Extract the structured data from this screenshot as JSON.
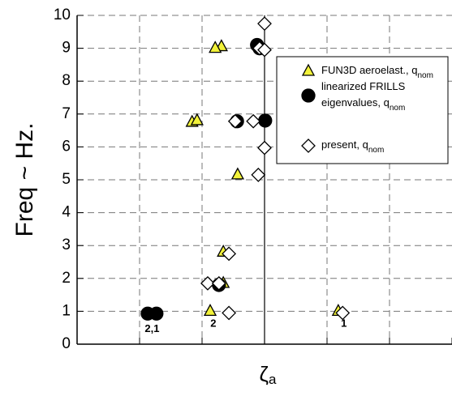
{
  "chart_data": {
    "type": "scatter",
    "y_label": "Freq ~ Hz.",
    "x_label": "ζ",
    "x_label_sub": "a",
    "xlim": [
      -3,
      3
    ],
    "xticks": [
      -3,
      -2,
      -1,
      0,
      1,
      2,
      3
    ],
    "ylim": [
      0,
      10
    ],
    "yticks": [
      0,
      1,
      2,
      3,
      4,
      5,
      6,
      7,
      8,
      9,
      10
    ],
    "grid": true,
    "vline": 0,
    "series": [
      {
        "name": [
          "FUN3D aeroelast., q"
        ],
        "name_sub": "nom",
        "marker": "triangle",
        "color": "#f2f23a",
        "x": [
          -0.69,
          -0.79,
          -1.16,
          -1.08,
          -0.43,
          -0.66,
          -0.66,
          -0.87,
          1.18
        ],
        "values": [
          9.05,
          9.0,
          6.75,
          6.8,
          5.15,
          2.8,
          1.85,
          1.0,
          1.0
        ]
      },
      {
        "name": [
          "linearized FRILLS",
          "eigenvalues, q"
        ],
        "name_sub": "nom",
        "marker": "circle",
        "color": "#000000",
        "x": [
          -1.87,
          -1.73,
          -0.73,
          -0.44,
          0.01,
          -0.12,
          -0.08
        ],
        "values": [
          0.93,
          0.93,
          1.8,
          6.78,
          6.8,
          9.1,
          9.0
        ]
      },
      {
        "name": [
          "present, q"
        ],
        "name_sub": "nom",
        "marker": "diamond",
        "color": "#ffffff",
        "x": [
          0.0,
          -0.08,
          0.0,
          -0.47,
          -0.18,
          0.0,
          -0.1,
          -0.57,
          -0.91,
          -0.73,
          -0.57,
          1.25
        ],
        "values": [
          9.75,
          9.0,
          8.95,
          6.78,
          6.78,
          5.97,
          5.15,
          2.75,
          1.85,
          1.85,
          0.95,
          0.95
        ]
      }
    ],
    "annotations": [
      {
        "text": "2,1",
        "x": -1.8,
        "y": 0.45
      },
      {
        "text": "2",
        "x": -0.82,
        "y": 0.62
      },
      {
        "text": "1",
        "x": 1.27,
        "y": 0.62
      }
    ]
  }
}
